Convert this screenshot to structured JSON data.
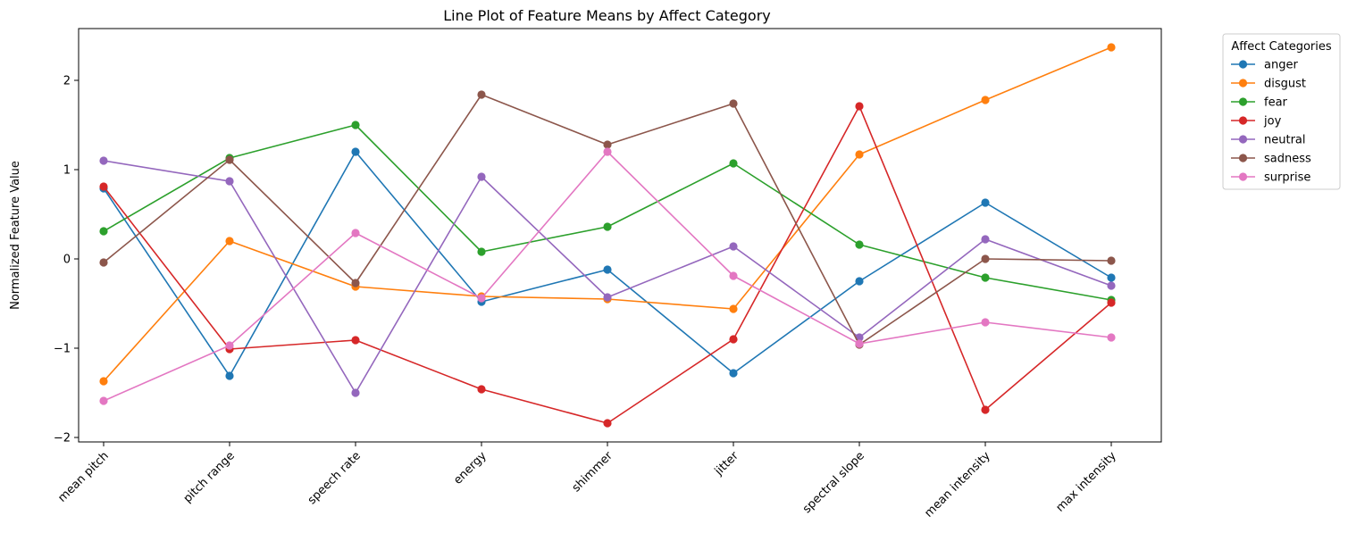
{
  "chart_data": {
    "type": "line",
    "title": "Line Plot of Feature Means by Affect Category",
    "xlabel": "",
    "ylabel": "Normalized Feature Value",
    "categories": [
      "mean pitch",
      "pitch range",
      "speech rate",
      "energy",
      "shimmer",
      "jitter",
      "spectral slope",
      "mean intensity",
      "max intensity"
    ],
    "ylim": [
      -2.05,
      2.58
    ],
    "yticks": [
      -2,
      -1,
      0,
      1,
      2
    ],
    "ytick_labels": [
      "−2",
      "−1",
      "0",
      "1",
      "2"
    ],
    "grid": false,
    "legend_title": "Affect Categories",
    "legend_position": "outside upper right",
    "series": [
      {
        "name": "anger",
        "color": "#1f77b4",
        "values": [
          0.79,
          -1.31,
          1.2,
          -0.48,
          -0.12,
          -1.28,
          -0.25,
          0.63,
          -0.21
        ]
      },
      {
        "name": "disgust",
        "color": "#ff7f0e",
        "values": [
          -1.37,
          0.2,
          -0.31,
          -0.42,
          -0.45,
          -0.56,
          1.17,
          1.78,
          2.37
        ]
      },
      {
        "name": "fear",
        "color": "#2ca02c",
        "values": [
          0.31,
          1.13,
          1.5,
          0.08,
          0.36,
          1.07,
          0.16,
          -0.21,
          -0.46
        ]
      },
      {
        "name": "joy",
        "color": "#d62728",
        "values": [
          0.81,
          -1.01,
          -0.91,
          -1.46,
          -1.84,
          -0.9,
          1.71,
          -1.69,
          -0.49
        ]
      },
      {
        "name": "neutral",
        "color": "#9467bd",
        "values": [
          1.1,
          0.87,
          -1.5,
          0.92,
          -0.43,
          0.14,
          -0.88,
          0.22,
          -0.3
        ]
      },
      {
        "name": "sadness",
        "color": "#8c564b",
        "values": [
          -0.04,
          1.11,
          -0.27,
          1.84,
          1.28,
          1.74,
          -0.96,
          0.0,
          -0.02
        ]
      },
      {
        "name": "surprise",
        "color": "#e377c2",
        "values": [
          -1.59,
          -0.97,
          0.29,
          -0.44,
          1.2,
          -0.19,
          -0.95,
          -0.71,
          -0.88
        ]
      }
    ]
  }
}
